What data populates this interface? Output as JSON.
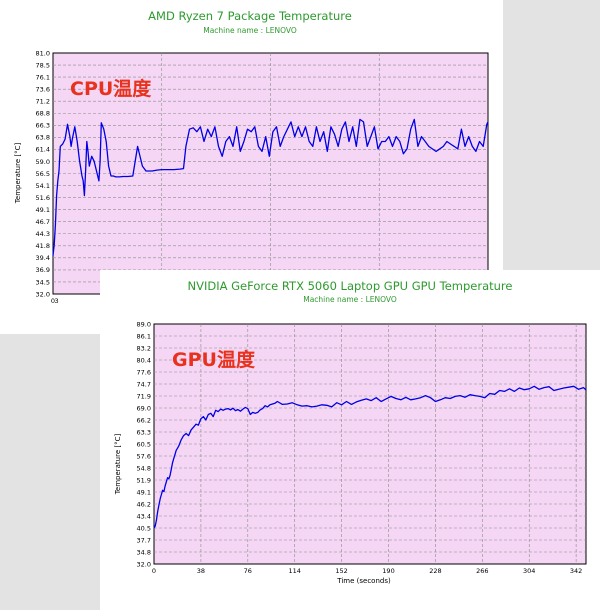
{
  "colors": {
    "line": "#0000e6",
    "plot_bg": "#f5d7f5",
    "title": "#2e9a2e",
    "annotation": "#e8321e",
    "grid": "#8b8b8b"
  },
  "chart_data": [
    {
      "type": "line",
      "title": "AMD Ryzen 7 Package Temperature",
      "subtitle": "Machine name : LENOVO",
      "annotation": "CPU温度",
      "ylabel": "Temperature [°C]",
      "xlabel": "",
      "ylim": [
        32.0,
        81.0
      ],
      "xlim": [
        0,
        360
      ],
      "yticks": [
        "81.0",
        "78.5",
        "76.1",
        "73.6",
        "71.2",
        "68.8",
        "66.3",
        "63.8",
        "61.4",
        "59.0",
        "56.5",
        "54.1",
        "51.6",
        "49.1",
        "46.7",
        "44.3",
        "41.8",
        "39.4",
        "36.9",
        "34.5",
        "32.0"
      ],
      "xticks": [
        "0",
        "3"
      ],
      "x": [
        0,
        1,
        2,
        3,
        4,
        5,
        6,
        8,
        10,
        12,
        14,
        15,
        16,
        18,
        20,
        22,
        24,
        25,
        26,
        27,
        28,
        29,
        30,
        32,
        34,
        36,
        38,
        39,
        40,
        42,
        44,
        46,
        48,
        50,
        52,
        53,
        55,
        58,
        62,
        66,
        70,
        74,
        77,
        82,
        86,
        90,
        95,
        100,
        105,
        108,
        110,
        113,
        116,
        119,
        122,
        125,
        128,
        131,
        134,
        137,
        140,
        143,
        146,
        149,
        152,
        155,
        158,
        161,
        164,
        167,
        170,
        173,
        176,
        179,
        182,
        185,
        188,
        191,
        194,
        197,
        200,
        203,
        206,
        209,
        212,
        215,
        218,
        221,
        224,
        227,
        230,
        233,
        236,
        239,
        242,
        245,
        248,
        251,
        254,
        257,
        260,
        263,
        266,
        269,
        272,
        275,
        278,
        281,
        284,
        287,
        290,
        293,
        296,
        299,
        302,
        305,
        308,
        311,
        314,
        317,
        320,
        323,
        326,
        329,
        332,
        335,
        338,
        341,
        344,
        347,
        350,
        353,
        356,
        359,
        360
      ],
      "y": [
        39.8,
        42.0,
        46.0,
        52.0,
        55.0,
        57.0,
        62.0,
        62.5,
        63.5,
        66.5,
        64.0,
        62.0,
        63.5,
        66.0,
        63.0,
        59.0,
        56.0,
        55.0,
        52.0,
        57.0,
        63.0,
        61.0,
        58.0,
        60.0,
        59.0,
        57.0,
        55.0,
        59.0,
        66.8,
        65.5,
        63.0,
        58.0,
        56.0,
        56.0,
        55.8,
        55.8,
        55.8,
        55.9,
        55.9,
        56.0,
        62.0,
        58.0,
        57.0,
        57.0,
        57.2,
        57.3,
        57.3,
        57.3,
        57.4,
        57.5,
        62.0,
        65.5,
        65.8,
        65.0,
        66.0,
        63.0,
        65.5,
        64.0,
        66.0,
        62.0,
        60.0,
        63.0,
        64.0,
        62.0,
        66.0,
        61.0,
        63.0,
        65.5,
        65.0,
        66.0,
        62.0,
        61.0,
        64.0,
        60.0,
        65.0,
        66.0,
        62.0,
        64.0,
        65.5,
        67.0,
        64.0,
        66.0,
        64.0,
        66.0,
        63.0,
        62.0,
        66.0,
        63.0,
        65.0,
        61.0,
        66.0,
        64.5,
        62.0,
        65.5,
        67.0,
        63.0,
        66.0,
        62.0,
        67.5,
        67.0,
        62.0,
        64.0,
        66.0,
        61.5,
        63.0,
        63.0,
        64.0,
        62.0,
        64.0,
        63.0,
        60.5,
        61.5,
        65.5,
        67.5,
        62.0,
        64.0,
        63.0,
        62.0,
        61.5,
        61.0,
        61.5,
        62.0,
        63.0,
        62.5,
        62.0,
        61.5,
        65.5,
        62.0,
        64.0,
        62.0,
        61.0,
        63.0,
        62.0,
        66.5,
        67.0
      ]
    },
    {
      "type": "line",
      "title": "NVIDIA GeForce RTX 5060 Laptop GPU GPU Temperature",
      "subtitle": "Machine name : LENOVO",
      "annotation": "GPU温度",
      "ylabel": "Temperature [°C]",
      "xlabel": "Time (seconds)",
      "ylim": [
        32.0,
        89.0
      ],
      "xlim": [
        0,
        350
      ],
      "yticks": [
        "89.0",
        "86.1",
        "83.2",
        "80.4",
        "77.6",
        "74.7",
        "71.9",
        "69.0",
        "66.2",
        "63.3",
        "60.5",
        "57.6",
        "54.8",
        "51.9",
        "49.1",
        "46.2",
        "43.4",
        "40.5",
        "37.7",
        "34.8",
        "32.0"
      ],
      "xticks": [
        "0",
        "38",
        "76",
        "114",
        "152",
        "190",
        "228",
        "266",
        "304",
        "342"
      ],
      "x": [
        0,
        1,
        2,
        3,
        4,
        5,
        6,
        7,
        8,
        9,
        10,
        11,
        12,
        13,
        14,
        15,
        16,
        17,
        18,
        19,
        20,
        22,
        24,
        26,
        28,
        30,
        32,
        34,
        36,
        38,
        40,
        42,
        44,
        46,
        48,
        50,
        52,
        54,
        56,
        58,
        60,
        62,
        64,
        66,
        68,
        70,
        72,
        74,
        76,
        78,
        80,
        82,
        84,
        86,
        88,
        90,
        92,
        94,
        96,
        98,
        100,
        104,
        108,
        112,
        116,
        120,
        124,
        128,
        132,
        136,
        140,
        144,
        148,
        152,
        156,
        160,
        164,
        168,
        172,
        176,
        180,
        184,
        188,
        192,
        196,
        200,
        204,
        208,
        212,
        216,
        220,
        224,
        228,
        232,
        236,
        240,
        244,
        248,
        252,
        256,
        260,
        264,
        268,
        272,
        276,
        280,
        284,
        288,
        292,
        296,
        300,
        304,
        308,
        312,
        316,
        320,
        324,
        328,
        332,
        336,
        340,
        344,
        348,
        350
      ],
      "y": [
        40.5,
        41.0,
        42.5,
        44.5,
        46.0,
        47.5,
        48.5,
        49.5,
        49.2,
        50.5,
        51.5,
        52.5,
        52.2,
        53.0,
        54.5,
        56.0,
        57.0,
        58.0,
        59.0,
        59.5,
        60.0,
        61.5,
        62.5,
        63.0,
        62.5,
        63.8,
        64.5,
        65.2,
        65.0,
        66.5,
        67.0,
        66.2,
        67.5,
        67.8,
        67.0,
        68.5,
        68.2,
        68.8,
        68.5,
        68.8,
        68.9,
        68.6,
        69.0,
        68.4,
        68.7,
        68.3,
        68.8,
        69.2,
        68.9,
        67.5,
        68.0,
        67.8,
        68.0,
        68.6,
        68.9,
        69.6,
        69.3,
        69.8,
        70.0,
        70.2,
        70.6,
        69.9,
        70.0,
        70.3,
        69.8,
        69.5,
        69.6,
        69.3,
        69.5,
        69.8,
        69.7,
        69.3,
        70.3,
        69.8,
        70.6,
        69.9,
        70.5,
        70.9,
        71.2,
        70.8,
        71.5,
        70.6,
        71.2,
        71.8,
        71.3,
        71.0,
        71.6,
        71.0,
        71.2,
        71.5,
        72.0,
        71.5,
        70.6,
        71.0,
        71.5,
        71.3,
        71.8,
        72.0,
        71.6,
        72.2,
        72.0,
        71.8,
        71.5,
        72.5,
        72.3,
        73.2,
        73.0,
        73.6,
        73.0,
        73.8,
        73.4,
        73.6,
        74.2,
        73.5,
        73.9,
        74.1,
        73.2,
        73.5,
        73.8,
        74.0,
        74.2,
        73.5,
        73.9,
        73.3
      ]
    }
  ]
}
